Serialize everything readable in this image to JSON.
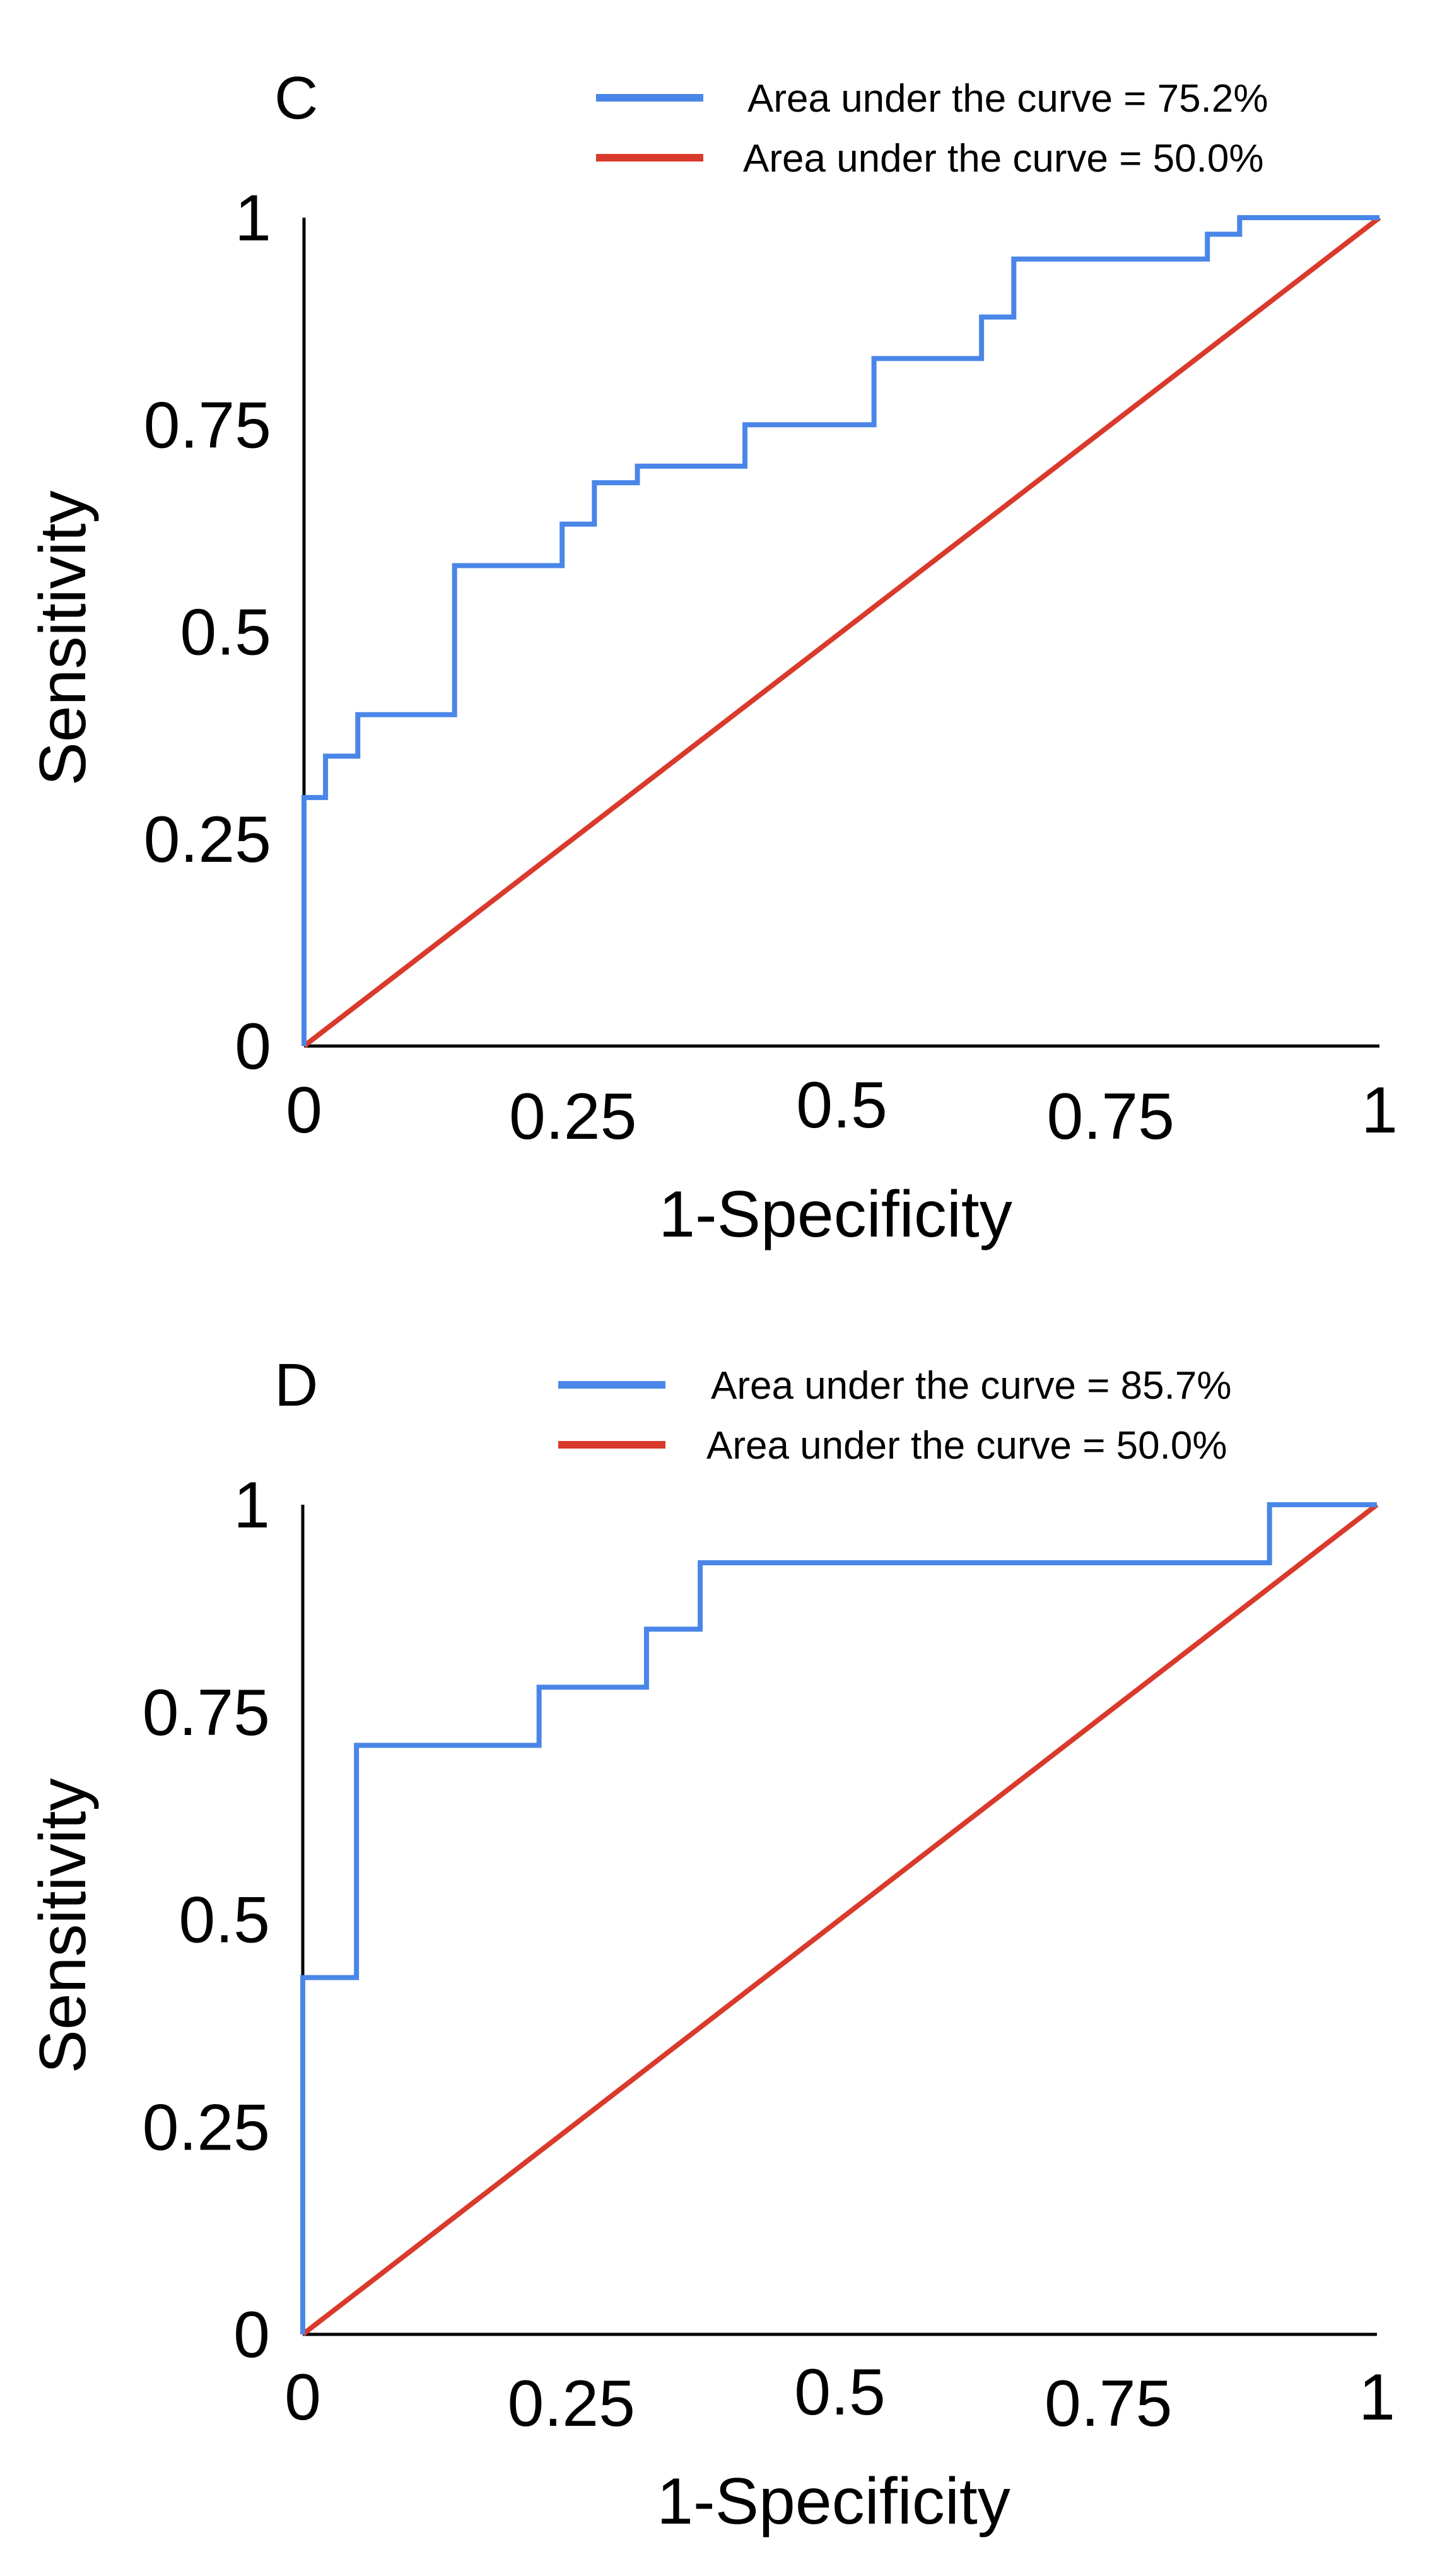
{
  "chart_data": [
    {
      "type": "line",
      "panel_label": "C",
      "xlabel": "1-Specificity",
      "ylabel": "Sensitivity",
      "xlim": [
        0,
        1
      ],
      "ylim": [
        0,
        1
      ],
      "x_ticks": [
        "0",
        "0.25",
        "0.5",
        "0.75",
        "1"
      ],
      "y_ticks": [
        "0",
        "0.25",
        "0.5",
        "0.75",
        "1"
      ],
      "legend_position": "top",
      "colors": {
        "roc": "#4a86e8",
        "reference": "#d93a2b"
      },
      "series": [
        {
          "name": "Area under the curve = 75.2%",
          "x": [
            0,
            0,
            0.02,
            0.02,
            0.05,
            0.05,
            0.14,
            0.14,
            0.24,
            0.24,
            0.27,
            0.27,
            0.31,
            0.31,
            0.41,
            0.41,
            0.53,
            0.53,
            0.63,
            0.63,
            0.66,
            0.66,
            0.84,
            0.84,
            0.87,
            0.87,
            1.0
          ],
          "y": [
            0,
            0.3,
            0.3,
            0.35,
            0.35,
            0.4,
            0.4,
            0.58,
            0.58,
            0.63,
            0.63,
            0.68,
            0.68,
            0.7,
            0.7,
            0.75,
            0.75,
            0.83,
            0.83,
            0.88,
            0.88,
            0.95,
            0.95,
            0.98,
            0.98,
            1.0,
            1.0
          ]
        },
        {
          "name": "Area under the curve = 50.0%",
          "x": [
            0,
            1
          ],
          "y": [
            0,
            1
          ]
        }
      ]
    },
    {
      "type": "line",
      "panel_label": "D",
      "xlabel": "1-Specificity",
      "ylabel": "Sensitivity",
      "xlim": [
        0,
        1
      ],
      "ylim": [
        0,
        1
      ],
      "x_ticks": [
        "0",
        "0.25",
        "0.5",
        "0.75",
        "1"
      ],
      "y_ticks": [
        "0",
        "0.25",
        "0.5",
        "0.75",
        "1"
      ],
      "legend_position": "top",
      "colors": {
        "roc": "#4a86e8",
        "reference": "#d93a2b"
      },
      "series": [
        {
          "name": "Area under the curve = 85.7%",
          "x": [
            0,
            0,
            0.05,
            0.05,
            0.22,
            0.22,
            0.32,
            0.32,
            0.37,
            0.37,
            0.9,
            0.9,
            1.0
          ],
          "y": [
            0,
            0.43,
            0.43,
            0.71,
            0.71,
            0.78,
            0.78,
            0.85,
            0.85,
            0.93,
            0.93,
            1.0,
            1.0
          ]
        },
        {
          "name": "Area under the curve = 50.0%",
          "x": [
            0,
            1
          ],
          "y": [
            0,
            1
          ]
        }
      ]
    }
  ]
}
